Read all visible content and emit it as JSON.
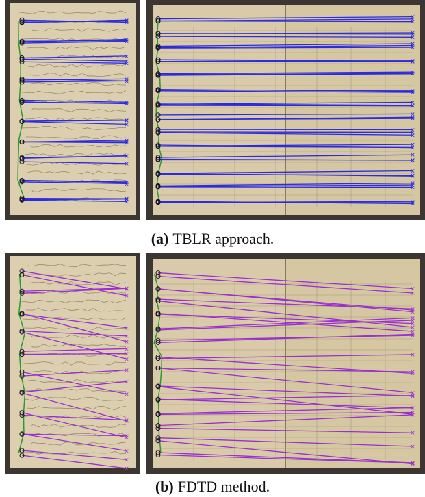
{
  "figure": {
    "panels": [
      {
        "label": "(a)",
        "caption": "TBLR approach."
      },
      {
        "label": "(b)",
        "caption": "FDTD method."
      }
    ]
  }
}
